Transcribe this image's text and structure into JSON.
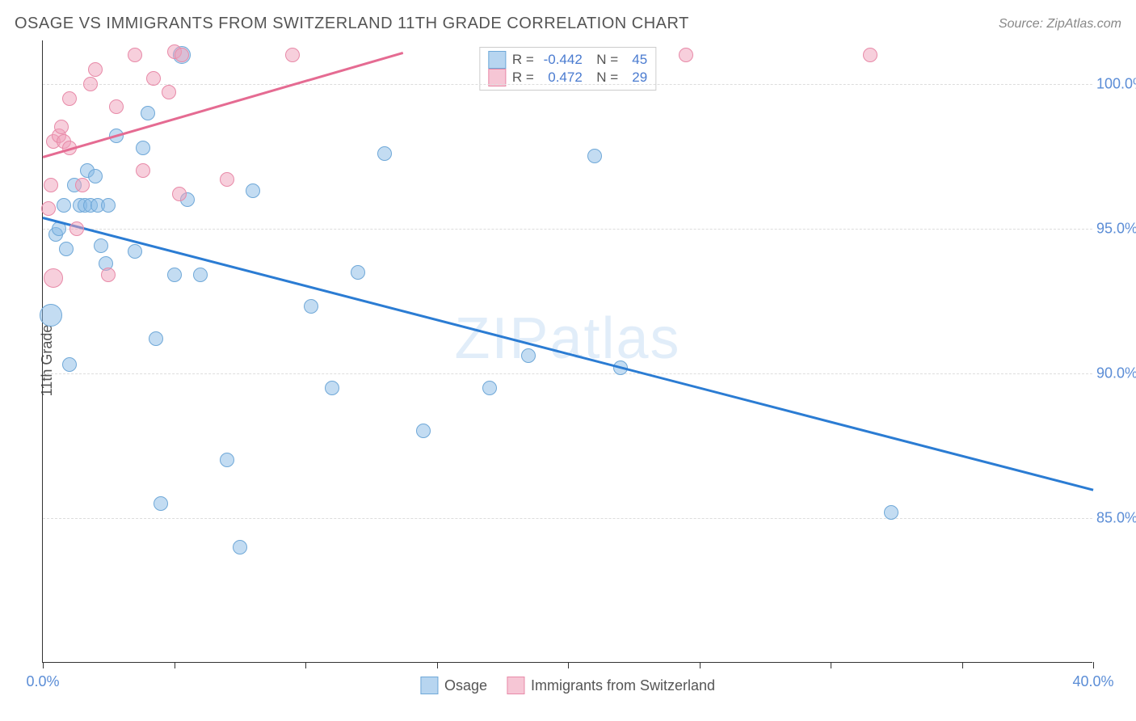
{
  "title": "OSAGE VS IMMIGRANTS FROM SWITZERLAND 11TH GRADE CORRELATION CHART",
  "source": "Source: ZipAtlas.com",
  "y_label": "11th Grade",
  "watermark": "ZIPatlas",
  "chart": {
    "type": "scatter",
    "xlim": [
      0,
      40
    ],
    "ylim": [
      80,
      101.5
    ],
    "x_ticks": [
      0,
      5,
      10,
      15,
      20,
      25,
      30,
      35,
      40
    ],
    "x_tick_labels_visible": {
      "0": "0.0%",
      "40": "40.0%"
    },
    "y_ticks": [
      85,
      90,
      95,
      100
    ],
    "y_tick_labels": {
      "85": "85.0%",
      "90": "90.0%",
      "95": "95.0%",
      "100": "100.0%"
    },
    "background_color": "#ffffff",
    "grid_color": "#dddddd",
    "axis_color": "#333333",
    "tick_label_color": "#5B8DD6",
    "title_color": "#555555",
    "title_fontsize": 20,
    "label_fontsize": 18,
    "series": [
      {
        "name": "Osage",
        "color_fill": "rgba(135,185,230,0.5)",
        "color_stroke": "#6FA8D8",
        "trend_color": "#2B7CD3",
        "R": "-0.442",
        "N": "45",
        "trend": {
          "x1": 0,
          "y1": 95.4,
          "x2": 40,
          "y2": 86.0
        },
        "points": [
          {
            "x": 0.3,
            "y": 92.0,
            "r": 14
          },
          {
            "x": 0.5,
            "y": 94.8,
            "r": 9
          },
          {
            "x": 0.6,
            "y": 95.0,
            "r": 9
          },
          {
            "x": 0.8,
            "y": 95.8,
            "r": 9
          },
          {
            "x": 0.9,
            "y": 94.3,
            "r": 9
          },
          {
            "x": 1.0,
            "y": 90.3,
            "r": 9
          },
          {
            "x": 1.2,
            "y": 96.5,
            "r": 9
          },
          {
            "x": 1.4,
            "y": 95.8,
            "r": 9
          },
          {
            "x": 1.6,
            "y": 95.8,
            "r": 9
          },
          {
            "x": 1.7,
            "y": 97.0,
            "r": 9
          },
          {
            "x": 1.8,
            "y": 95.8,
            "r": 9
          },
          {
            "x": 2.0,
            "y": 96.8,
            "r": 9
          },
          {
            "x": 2.1,
            "y": 95.8,
            "r": 9
          },
          {
            "x": 2.2,
            "y": 94.4,
            "r": 9
          },
          {
            "x": 2.4,
            "y": 93.8,
            "r": 9
          },
          {
            "x": 2.5,
            "y": 95.8,
            "r": 9
          },
          {
            "x": 2.8,
            "y": 98.2,
            "r": 9
          },
          {
            "x": 3.5,
            "y": 94.2,
            "r": 9
          },
          {
            "x": 3.8,
            "y": 97.8,
            "r": 9
          },
          {
            "x": 4.0,
            "y": 99.0,
            "r": 9
          },
          {
            "x": 4.3,
            "y": 91.2,
            "r": 9
          },
          {
            "x": 4.5,
            "y": 85.5,
            "r": 9
          },
          {
            "x": 5.0,
            "y": 93.4,
            "r": 9
          },
          {
            "x": 5.3,
            "y": 101.0,
            "r": 11
          },
          {
            "x": 5.5,
            "y": 96.0,
            "r": 9
          },
          {
            "x": 6.0,
            "y": 93.4,
            "r": 9
          },
          {
            "x": 7.0,
            "y": 87.0,
            "r": 9
          },
          {
            "x": 7.5,
            "y": 84.0,
            "r": 9
          },
          {
            "x": 8.0,
            "y": 96.3,
            "r": 9
          },
          {
            "x": 10.2,
            "y": 92.3,
            "r": 9
          },
          {
            "x": 11.0,
            "y": 89.5,
            "r": 9
          },
          {
            "x": 12.0,
            "y": 93.5,
            "r": 9
          },
          {
            "x": 13.0,
            "y": 97.6,
            "r": 9
          },
          {
            "x": 14.5,
            "y": 88.0,
            "r": 9
          },
          {
            "x": 17.0,
            "y": 89.5,
            "r": 9
          },
          {
            "x": 18.5,
            "y": 90.6,
            "r": 9
          },
          {
            "x": 21.0,
            "y": 97.5,
            "r": 9
          },
          {
            "x": 22.0,
            "y": 90.2,
            "r": 9
          },
          {
            "x": 32.3,
            "y": 85.2,
            "r": 9
          }
        ]
      },
      {
        "name": "Immigrants from Switzerland",
        "color_fill": "rgba(240,160,185,0.5)",
        "color_stroke": "#E88AA8",
        "trend_color": "#E56B92",
        "R": "0.472",
        "N": "29",
        "trend": {
          "x1": 0,
          "y1": 97.5,
          "x2": 13.7,
          "y2": 101.1
        },
        "points": [
          {
            "x": 0.2,
            "y": 95.7,
            "r": 9
          },
          {
            "x": 0.3,
            "y": 96.5,
            "r": 9
          },
          {
            "x": 0.4,
            "y": 98.0,
            "r": 9
          },
          {
            "x": 0.4,
            "y": 93.3,
            "r": 12
          },
          {
            "x": 0.6,
            "y": 98.2,
            "r": 9
          },
          {
            "x": 0.7,
            "y": 98.5,
            "r": 9
          },
          {
            "x": 0.8,
            "y": 98.0,
            "r": 9
          },
          {
            "x": 1.0,
            "y": 97.8,
            "r": 9
          },
          {
            "x": 1.0,
            "y": 99.5,
            "r": 9
          },
          {
            "x": 1.3,
            "y": 95.0,
            "r": 9
          },
          {
            "x": 1.5,
            "y": 96.5,
            "r": 9
          },
          {
            "x": 1.8,
            "y": 100.0,
            "r": 9
          },
          {
            "x": 2.0,
            "y": 100.5,
            "r": 9
          },
          {
            "x": 2.8,
            "y": 99.2,
            "r": 9
          },
          {
            "x": 2.5,
            "y": 93.4,
            "r": 9
          },
          {
            "x": 3.5,
            "y": 101.0,
            "r": 9
          },
          {
            "x": 3.8,
            "y": 97.0,
            "r": 9
          },
          {
            "x": 4.2,
            "y": 100.2,
            "r": 9
          },
          {
            "x": 4.8,
            "y": 99.7,
            "r": 9
          },
          {
            "x": 5.0,
            "y": 101.1,
            "r": 9
          },
          {
            "x": 5.2,
            "y": 96.2,
            "r": 9
          },
          {
            "x": 5.3,
            "y": 101.0,
            "r": 9
          },
          {
            "x": 7.0,
            "y": 96.7,
            "r": 9
          },
          {
            "x": 9.5,
            "y": 101.0,
            "r": 9
          },
          {
            "x": 24.5,
            "y": 101.0,
            "r": 9
          },
          {
            "x": 31.5,
            "y": 101.0,
            "r": 9
          }
        ]
      }
    ],
    "legend": [
      "Osage",
      "Immigrants from Switzerland"
    ]
  }
}
